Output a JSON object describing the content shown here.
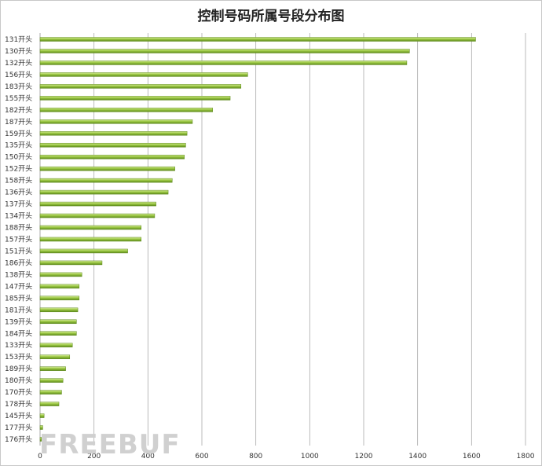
{
  "watermark": "FREEBUF",
  "chart_data": {
    "type": "bar",
    "orientation": "horizontal",
    "title": "控制号码所属号段分布图",
    "categories": [
      "131开头",
      "130开头",
      "132开头",
      "156开头",
      "183开头",
      "155开头",
      "182开头",
      "187开头",
      "159开头",
      "135开头",
      "150开头",
      "152开头",
      "158开头",
      "136开头",
      "137开头",
      "134开头",
      "188开头",
      "157开头",
      "151开头",
      "186开头",
      "138开头",
      "147开头",
      "185开头",
      "181开头",
      "139开头",
      "184开头",
      "133开头",
      "153开头",
      "189开头",
      "180开头",
      "170开头",
      "178开头",
      "145开头",
      "177开头",
      "176开头"
    ],
    "values": [
      1615,
      1370,
      1360,
      770,
      745,
      705,
      640,
      565,
      545,
      540,
      535,
      500,
      490,
      475,
      430,
      425,
      375,
      375,
      325,
      230,
      155,
      145,
      145,
      140,
      135,
      135,
      120,
      110,
      95,
      85,
      80,
      70,
      15,
      10,
      5
    ],
    "xlim": [
      0,
      1800
    ],
    "xticks": [
      0,
      200,
      400,
      600,
      800,
      1000,
      1200,
      1400,
      1600,
      1800
    ],
    "xlabel": "",
    "ylabel": "",
    "grid": true,
    "legend": "none",
    "colors": {
      "bar_light": "#d8ec9c",
      "bar_mid": "#9bc843",
      "bar_dark": "#5e8a1c",
      "grid": "#aaaaaa"
    }
  }
}
